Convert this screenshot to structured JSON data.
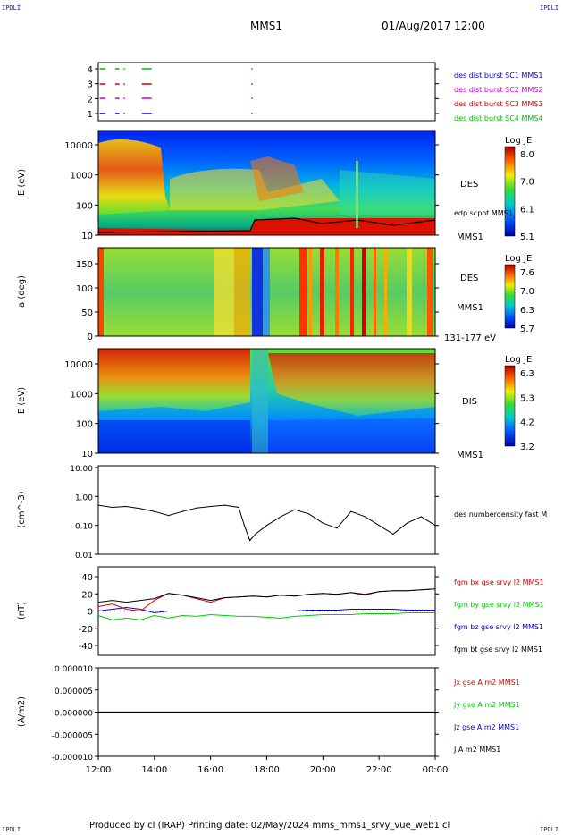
{
  "header": {
    "corner_label": "IPDLI",
    "spacecraft": "MMS1",
    "date_time": "01/Aug/2017 12:00"
  },
  "footer": {
    "text": "Produced by cl (IRAP)   Printing date: 02/May/2024   mms_mms1_srvy_vue_web1.cl"
  },
  "colors": {
    "sc1": "#0000cc",
    "sc2": "#cc00cc",
    "sc3": "#cc0000",
    "sc4": "#00bb00",
    "bx": "#dd0000",
    "by": "#00cc00",
    "bz": "#0000dd",
    "bt": "#000000"
  },
  "time_axis": {
    "ticks": [
      "12:00",
      "14:00",
      "16:00",
      "18:00",
      "20:00",
      "22:00",
      "00:00"
    ]
  },
  "chart_data": [
    {
      "type": "line",
      "panel": "burst-availability",
      "y_ticks": [
        "4",
        "3",
        "2",
        "1"
      ],
      "legend": [
        "des dist burst SC1 MMS1",
        "des dist burst SC2 MMS2",
        "des dist burst SC3 MMS3",
        "des dist burst SC4 MMS4"
      ],
      "segments_hours": [
        [
          0.05,
          0.25
        ],
        [
          0.6,
          0.75
        ],
        [
          0.9,
          0.95
        ],
        [
          1.55,
          1.9
        ],
        [
          5.45,
          5.5
        ]
      ]
    },
    {
      "type": "heatmap",
      "panel": "des-energy",
      "ylabel": "E (eV)",
      "y_ticks": [
        "10000",
        "1000",
        "100",
        "10"
      ],
      "side_label": "DES",
      "sub_label": "edp scpot MMS1",
      "spacecraft_label": "MMS1",
      "colorbar": {
        "title": "Log JE",
        "ticks": [
          "8.0",
          "7.0",
          "6.1",
          "5.1"
        ],
        "range": [
          5.1,
          8.0
        ]
      }
    },
    {
      "type": "heatmap",
      "panel": "des-pitch-angle",
      "ylabel": "a (deg)",
      "y_ticks": [
        "150",
        "100",
        "50",
        "0"
      ],
      "side_label": "DES",
      "spacecraft_label": "MMS1",
      "energy_label": "131-177 eV",
      "colorbar": {
        "title": "Log JE",
        "ticks": [
          "7.6",
          "7.0",
          "6.3",
          "5.7"
        ],
        "range": [
          5.7,
          7.6
        ]
      }
    },
    {
      "type": "heatmap",
      "panel": "dis-energy",
      "ylabel": "E (eV)",
      "y_ticks": [
        "10000",
        "1000",
        "100",
        "10"
      ],
      "side_label": "DIS",
      "spacecraft_label": "MMS1",
      "colorbar": {
        "title": "Log JE",
        "ticks": [
          "6.3",
          "5.3",
          "4.2",
          "3.2"
        ],
        "range": [
          3.2,
          6.3
        ]
      }
    },
    {
      "type": "line",
      "panel": "density",
      "ylabel": "(cm^-3)",
      "y_ticks": [
        "10.00",
        "1.00",
        "0.10",
        "0.01"
      ],
      "legend": [
        "des numberdensity fast M"
      ],
      "scale": "log",
      "x_hours": [
        0,
        0.5,
        1,
        1.5,
        2,
        2.5,
        3,
        3.5,
        4,
        4.5,
        5,
        5.2,
        5.4,
        5.6,
        6,
        6.5,
        7,
        7.5,
        8,
        8.5,
        9,
        9.5,
        10,
        10.5,
        11,
        11.5,
        12
      ],
      "values": [
        0.5,
        0.42,
        0.45,
        0.38,
        0.3,
        0.22,
        0.3,
        0.4,
        0.45,
        0.5,
        0.42,
        0.1,
        0.03,
        0.05,
        0.1,
        0.2,
        0.35,
        0.25,
        0.12,
        0.08,
        0.3,
        0.2,
        0.1,
        0.05,
        0.12,
        0.2,
        0.1
      ]
    },
    {
      "type": "line",
      "panel": "magnetic-field",
      "ylabel": "(nT)",
      "y_ticks": [
        "40",
        "20",
        "0",
        "-20",
        "-40"
      ],
      "ylim": [
        -50,
        50
      ],
      "legend": [
        "fgm bx gse srvy l2 MMS1",
        "fgm by gse srvy l2 MMS1",
        "fgm bz gse srvy l2 MMS1",
        "fgm bt gse srvy l2 MMS1"
      ],
      "x_hours": [
        0,
        0.5,
        1,
        1.5,
        2,
        2.5,
        3,
        3.5,
        4,
        4.5,
        5,
        5.5,
        6,
        6.5,
        7,
        7.5,
        8,
        8.5,
        9,
        9.5,
        10,
        10.5,
        11,
        11.5,
        12
      ],
      "series": [
        {
          "values": [
            5,
            8,
            2,
            0,
            12,
            20,
            18,
            14,
            10,
            15,
            16,
            17,
            16,
            18,
            17,
            19,
            20,
            19,
            21,
            18,
            22,
            23,
            23,
            24,
            25
          ]
        },
        {
          "values": [
            -5,
            -10,
            -8,
            -10,
            -5,
            -8,
            -5,
            -6,
            -4,
            -5,
            -6,
            -6,
            -7,
            -8,
            -6,
            -5,
            -4,
            -4,
            -4,
            -3,
            -3,
            -3,
            -2,
            -2,
            -2
          ]
        },
        {
          "values": [
            0,
            2,
            4,
            2,
            -2,
            0,
            0,
            0,
            0,
            0,
            0,
            0,
            0,
            0,
            0,
            1,
            1,
            1,
            2,
            2,
            2,
            2,
            1,
            1,
            1
          ]
        },
        {
          "values": [
            10,
            12,
            10,
            12,
            14,
            20,
            18,
            15,
            12,
            15,
            16,
            17,
            16,
            18,
            17,
            19,
            20,
            19,
            21,
            19,
            22,
            23,
            23,
            24,
            25
          ]
        }
      ]
    },
    {
      "type": "line",
      "panel": "current-density",
      "ylabel": "(A/m2)",
      "y_ticks": [
        "0.000010",
        "0.000005",
        "0.000000",
        "-0.000005",
        "-0.000010"
      ],
      "ylim": [
        -1e-05,
        1e-05
      ],
      "legend": [
        "Jx gse A m2 MMS1",
        "Jy gse A m2 MMS1",
        "Jz gse A m2 MMS1",
        "J A m2 MMS1"
      ],
      "values": [
        0,
        0,
        0,
        0
      ]
    }
  ]
}
